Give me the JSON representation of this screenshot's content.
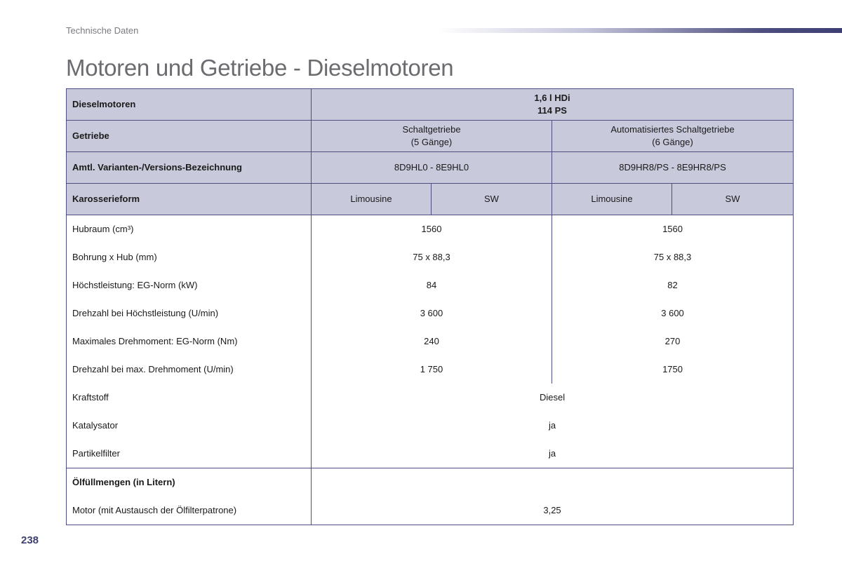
{
  "header": {
    "section": "Technische Daten",
    "title": "Motoren und Getriebe - Dieselmotoren",
    "page_number": "238"
  },
  "table": {
    "engine": {
      "label": "Dieselmotoren",
      "value_line1": "1,6 l HDi",
      "value_line2": "114 PS"
    },
    "gearbox": {
      "label": "Getriebe",
      "manual_line1": "Schaltgetriebe",
      "manual_line2": "(5 Gänge)",
      "auto_line1": "Automatisiertes Schaltgetriebe",
      "auto_line2": "(6 Gänge)"
    },
    "variant": {
      "label": "Amtl. Varianten-/Versions-Bezeichnung",
      "manual": "8D9HL0 - 8E9HL0",
      "auto": "8D9HR8/PS - 8E9HR8/PS"
    },
    "body": {
      "label": "Karosserieform",
      "c1": "Limousine",
      "c2": "SW",
      "c3": "Limousine",
      "c4": "SW"
    },
    "rows": [
      {
        "label": "Hubraum (cm³)",
        "manual": "1560",
        "auto": "1560"
      },
      {
        "label": "Bohrung x Hub (mm)",
        "manual": "75 x 88,3",
        "auto": "75 x 88,3"
      },
      {
        "label": "Höchstleistung: EG-Norm (kW)",
        "manual": "84",
        "auto": "82"
      },
      {
        "label": "Drehzahl bei Höchstleistung (U/min)",
        "manual": "3 600",
        "auto": "3 600"
      },
      {
        "label": "Maximales Drehmoment: EG-Norm (Nm)",
        "manual": "240",
        "auto": "270"
      },
      {
        "label": "Drehzahl bei max. Drehmoment (U/min)",
        "manual": "1 750",
        "auto": "1750"
      }
    ],
    "shared_rows": [
      {
        "label": "Kraftstoff",
        "value": "Diesel"
      },
      {
        "label": "Katalysator",
        "value": "ja"
      },
      {
        "label": "Partikelfilter",
        "value": "ja"
      }
    ],
    "oil": {
      "heading": "Ölfüllmengen (in Litern)",
      "label": "Motor (mit Austausch der Ölfilterpatrone)",
      "value": "3,25"
    }
  }
}
